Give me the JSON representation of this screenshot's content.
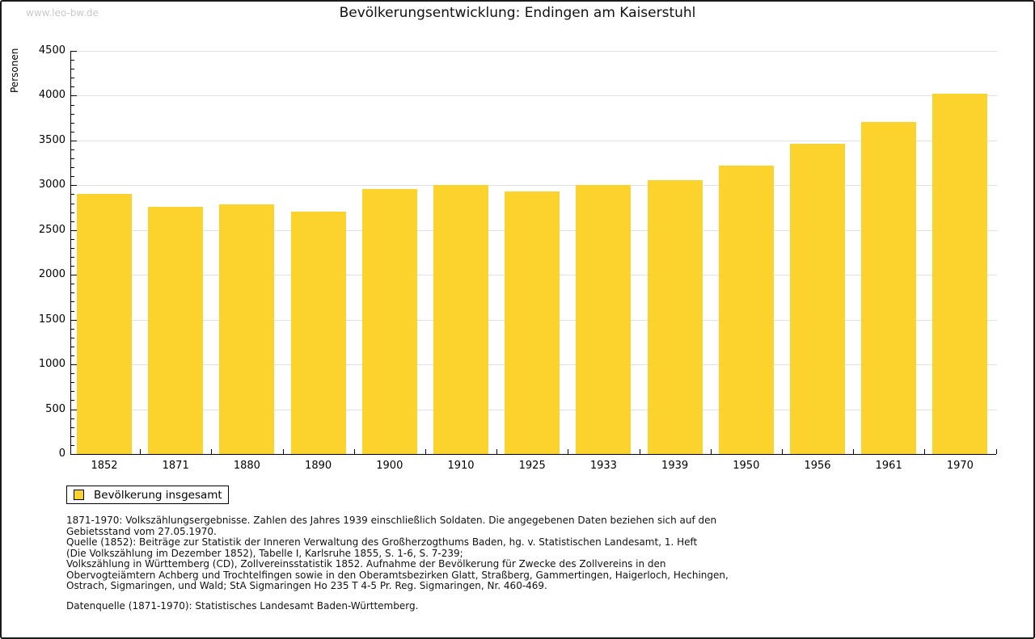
{
  "watermark": "www.leo-bw.de",
  "title": "Bevölkerungsentwicklung: Endingen am Kaiserstuhl",
  "legend": {
    "label": "Bevölkerung insgesamt"
  },
  "colors": {
    "bar": "#FCD32D",
    "grid": "#e0e0e0",
    "axis": "#000000",
    "watermark": "#c9c9c9"
  },
  "chart_data": {
    "type": "bar",
    "title": "Bevölkerungsentwicklung: Endingen am Kaiserstuhl",
    "series_name": "Bevölkerung insgesamt",
    "categories": [
      "1852",
      "1871",
      "1880",
      "1890",
      "1900",
      "1910",
      "1925",
      "1933",
      "1939",
      "1950",
      "1956",
      "1961",
      "1970"
    ],
    "values": [
      2900,
      2760,
      2785,
      2705,
      2955,
      3005,
      2935,
      3000,
      3060,
      3220,
      3460,
      3710,
      4020
    ],
    "xlabel": "",
    "ylabel": "Personen",
    "ylim": [
      0,
      4500
    ],
    "ytick_step": 500,
    "ytick_minor_step": 100,
    "grid": true,
    "legend_position": "bottom-left"
  },
  "footnotes": [
    "1871-1970: Volkszählungsergebnisse. Zahlen des Jahres 1939 einschließlich Soldaten. Die angegebenen Daten beziehen sich auf den",
    "Gebietsstand vom 27.05.1970.",
    "Quelle (1852): Beiträge zur Statistik der Inneren Verwaltung des Großherzogthums Baden, hg. v. Statistischen Landesamt, 1. Heft",
    "(Die Volkszählung im Dezember 1852), Tabelle I, Karlsruhe 1855, S. 1-6, S. 7-239;",
    "Volkszählung in Württemberg (CD), Zollvereinsstatistik 1852. Aufnahme der Bevölkerung für Zwecke des Zollvereins in den",
    "Obervogteiämtern Achberg und Trochtelfingen sowie in den Oberamtsbezirken Glatt, Straßberg, Gammertingen, Haigerloch, Hechingen,",
    "Ostrach, Sigmaringen, und Wald; StA Sigmaringen Ho 235 T 4-5 Pr. Reg. Sigmaringen, Nr. 460-469."
  ],
  "datasource": "Datenquelle (1871-1970): Statistisches Landesamt Baden-Württemberg."
}
